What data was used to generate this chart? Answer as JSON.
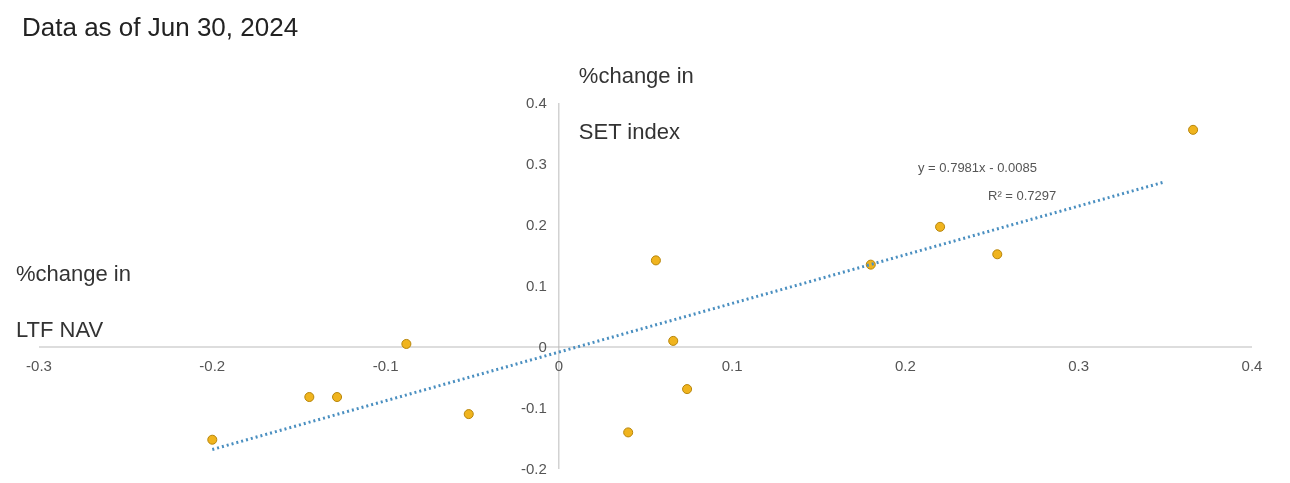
{
  "chart_data": {
    "type": "scatter",
    "title": "Data as of Jun 30, 2024",
    "xlabel": "%change in LTF NAV",
    "ylabel": "%change in SET index",
    "series": [
      {
        "color": "#f0b41e",
        "x": [
          -0.2,
          -0.144,
          -0.128,
          -0.088,
          -0.052,
          0.04,
          0.056,
          0.066,
          0.074,
          0.18,
          0.22,
          0.253,
          0.366
        ],
        "values": [
          -0.152,
          -0.082,
          -0.082,
          0.005,
          -0.11,
          -0.14,
          0.142,
          0.01,
          -0.069,
          0.135,
          0.197,
          0.152,
          0.356
        ]
      },
      {
        "type": "line",
        "color": "#4a8fc0",
        "x": [
          -0.2,
          0.35
        ],
        "values": [
          -0.168,
          0.271
        ],
        "line_style": "dotted",
        "marker": "none"
      }
    ],
    "xlim": [
      -0.3,
      0.4
    ],
    "ylim": [
      -0.2,
      0.4
    ],
    "xticks": [
      -0.3,
      -0.2,
      -0.1,
      0,
      0.1,
      0.2,
      0.3,
      0.4
    ],
    "yticks": [
      -0.2,
      -0.1,
      0,
      0.1,
      0.2,
      0.3,
      0.4
    ],
    "annotations": [
      "y = 0.7981x - 0.0085",
      "R² = 0.7297"
    ],
    "marker": "circle",
    "grid": false,
    "legend": false
  }
}
